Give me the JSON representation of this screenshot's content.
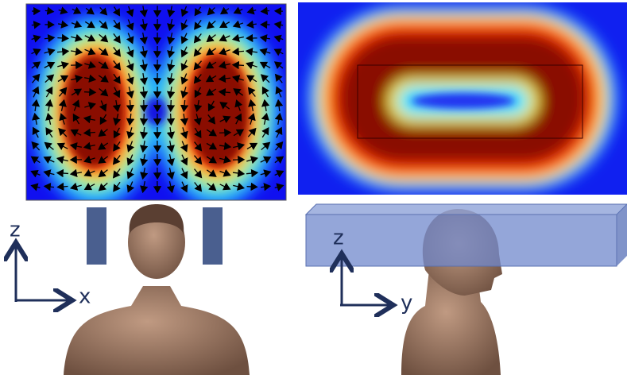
{
  "left_panel": {
    "axes": {
      "vertical": "z",
      "horizontal": "x"
    }
  },
  "right_panel": {
    "axes": {
      "vertical": "z",
      "horizontal": "y"
    }
  }
}
